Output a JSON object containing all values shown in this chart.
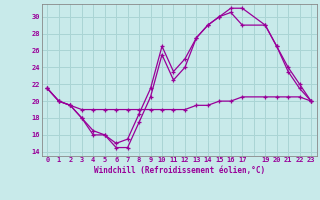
{
  "xlabel": "Windchill (Refroidissement éolien,°C)",
  "bg_color": "#c8eaea",
  "grid_color": "#aad4d4",
  "line_color": "#990099",
  "spine_color": "#888888",
  "xlim": [
    -0.5,
    23.5
  ],
  "ylim": [
    13.5,
    31.5
  ],
  "yticks": [
    14,
    16,
    18,
    20,
    22,
    24,
    26,
    28,
    30
  ],
  "lines": [
    {
      "x": [
        0,
        1,
        2,
        3,
        4,
        5,
        6,
        7,
        8,
        9,
        10,
        11,
        12,
        13,
        14,
        15,
        16,
        17,
        19,
        20,
        21,
        22,
        23
      ],
      "y": [
        21.5,
        20.0,
        19.5,
        18.0,
        16.0,
        16.0,
        14.5,
        14.5,
        17.5,
        20.5,
        25.5,
        22.5,
        24.0,
        27.5,
        29.0,
        30.0,
        31.0,
        31.0,
        29.0,
        26.5,
        24.0,
        22.0,
        20.0
      ]
    },
    {
      "x": [
        0,
        1,
        2,
        3,
        4,
        5,
        6,
        7,
        8,
        9,
        10,
        11,
        12,
        13,
        14,
        15,
        16,
        17,
        19,
        20,
        21,
        22,
        23
      ],
      "y": [
        21.5,
        20.0,
        19.5,
        18.0,
        16.5,
        16.0,
        15.0,
        15.5,
        18.5,
        21.5,
        26.5,
        23.5,
        25.0,
        27.5,
        29.0,
        30.0,
        30.5,
        29.0,
        29.0,
        26.5,
        23.5,
        21.5,
        20.0
      ]
    },
    {
      "x": [
        0,
        1,
        2,
        3,
        4,
        5,
        6,
        7,
        8,
        9,
        10,
        11,
        12,
        13,
        14,
        15,
        16,
        17,
        19,
        20,
        21,
        22,
        23
      ],
      "y": [
        21.5,
        20.0,
        19.5,
        19.0,
        19.0,
        19.0,
        19.0,
        19.0,
        19.0,
        19.0,
        19.0,
        19.0,
        19.0,
        19.5,
        19.5,
        20.0,
        20.0,
        20.5,
        20.5,
        20.5,
        20.5,
        20.5,
        20.0
      ]
    }
  ]
}
